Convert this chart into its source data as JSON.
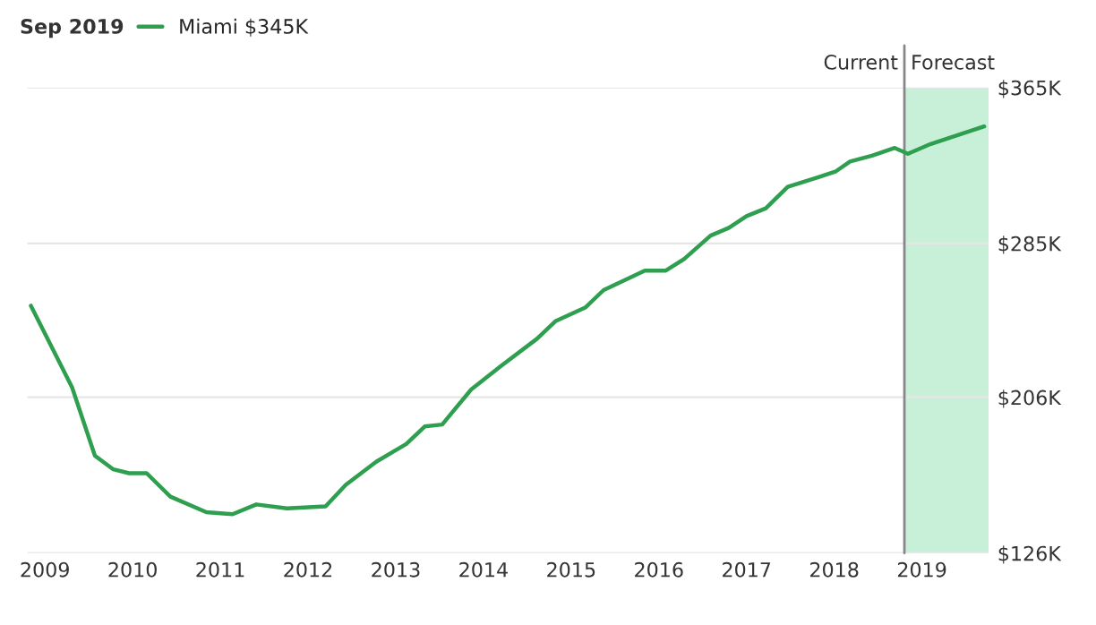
{
  "chart_data": {
    "type": "line",
    "title": "Sep 2019",
    "x": [
      2008.84,
      2009.31,
      2009.57,
      2009.78,
      2009.96,
      2010.16,
      2010.43,
      2010.84,
      2011.14,
      2011.41,
      2011.76,
      2012.2,
      2012.43,
      2012.78,
      2013.12,
      2013.33,
      2013.53,
      2013.86,
      2014.2,
      2014.61,
      2014.82,
      2015.16,
      2015.37,
      2015.84,
      2016.08,
      2016.29,
      2016.59,
      2016.8,
      2017.0,
      2017.22,
      2017.47,
      2017.82,
      2018.02,
      2018.18,
      2018.43,
      2018.69,
      2018.84,
      2019.1,
      2019.37,
      2019.71
    ],
    "series": [
      {
        "name": "Miami $345K",
        "color": "#2e9e4f",
        "values": [
          253,
          211,
          176,
          169,
          167,
          167,
          155,
          147,
          146,
          151,
          149,
          150,
          161,
          173,
          182,
          191,
          192,
          210,
          222,
          236,
          245,
          252,
          261,
          271,
          271,
          277,
          289,
          293,
          299,
          303,
          314,
          319,
          322,
          327,
          330,
          334,
          331,
          336,
          340,
          345
        ]
      }
    ],
    "xlim": [
      2008.8,
      2019.76
    ],
    "xticks": [
      2009,
      2010,
      2011,
      2012,
      2013,
      2014,
      2015,
      2016,
      2017,
      2018,
      2019
    ],
    "ylim": [
      126,
      365
    ],
    "yticks": [
      {
        "value": 126,
        "label": "$126K"
      },
      {
        "value": 206,
        "label": "$206K"
      },
      {
        "value": 285,
        "label": "$285K"
      },
      {
        "value": 365,
        "label": "$365K"
      }
    ],
    "ref_lines": [
      {
        "axis": "x",
        "value": 2018.8,
        "label": "Current",
        "color": "#888888"
      }
    ],
    "bands": [
      {
        "axis": "x",
        "from": 2018.8,
        "to": 2019.76,
        "label": "Forecast",
        "color": "#c8f0d8"
      }
    ],
    "grid": "y",
    "legend": "top left",
    "line_style": "solid",
    "marker": "none"
  }
}
